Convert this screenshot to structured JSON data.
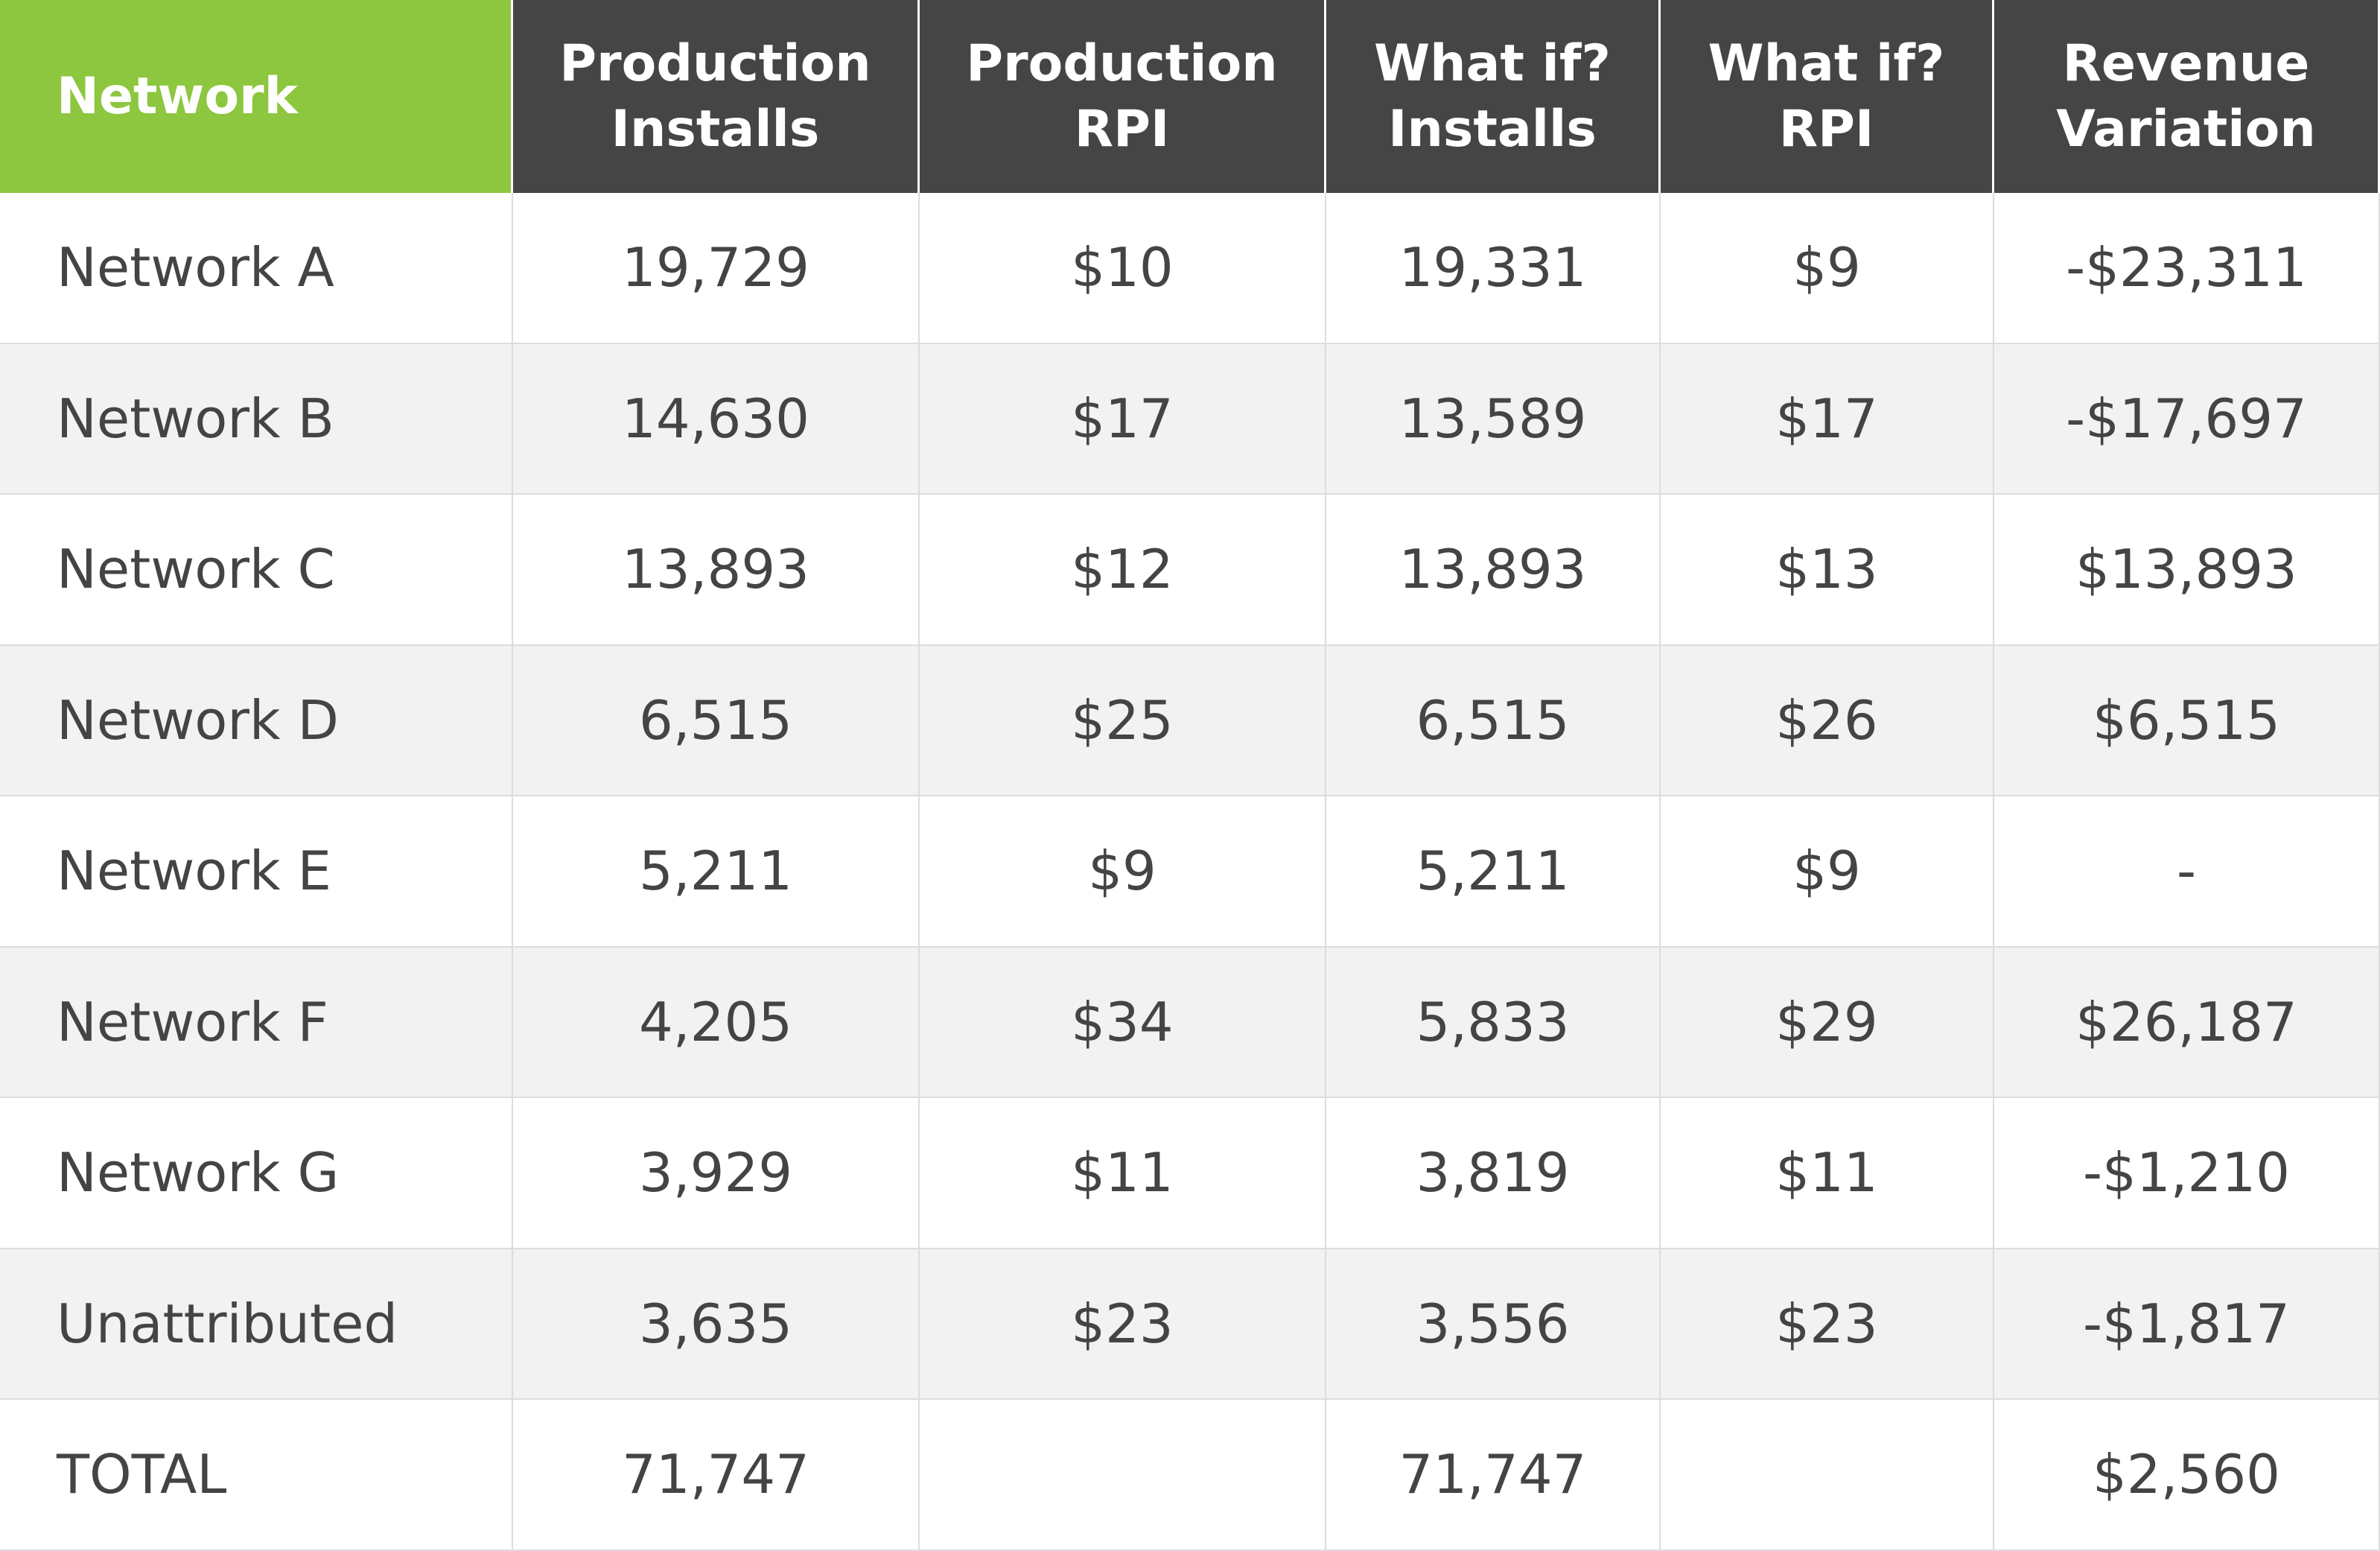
{
  "table": {
    "header": [
      "Network",
      "Production Installs",
      "Production RPI",
      "What if? Installs",
      "What if? RPI",
      "Revenue Variation"
    ],
    "rows": [
      [
        "Network A",
        "19,729",
        "$10",
        "19,331",
        "$9",
        "-$23,311"
      ],
      [
        "Network B",
        "14,630",
        "$17",
        "13,589",
        "$17",
        "-$17,697"
      ],
      [
        "Network C",
        "13,893",
        "$12",
        "13,893",
        "$13",
        "$13,893"
      ],
      [
        "Network D",
        "6,515",
        "$25",
        "6,515",
        "$26",
        "$6,515"
      ],
      [
        "Network E",
        "5,211",
        "$9",
        "5,211",
        "$9",
        "-"
      ],
      [
        "Network F",
        "4,205",
        "$34",
        "5,833",
        "$29",
        "$26,187"
      ],
      [
        "Network G",
        "3,929",
        "$11",
        "3,819",
        "$11",
        "-$1,210"
      ],
      [
        "Unattributed",
        "3,635",
        "$23",
        "3,556",
        "$23",
        "-$1,817"
      ],
      [
        "TOTAL",
        "71,747",
        null,
        "71,747",
        null,
        "$2,560"
      ]
    ]
  }
}
